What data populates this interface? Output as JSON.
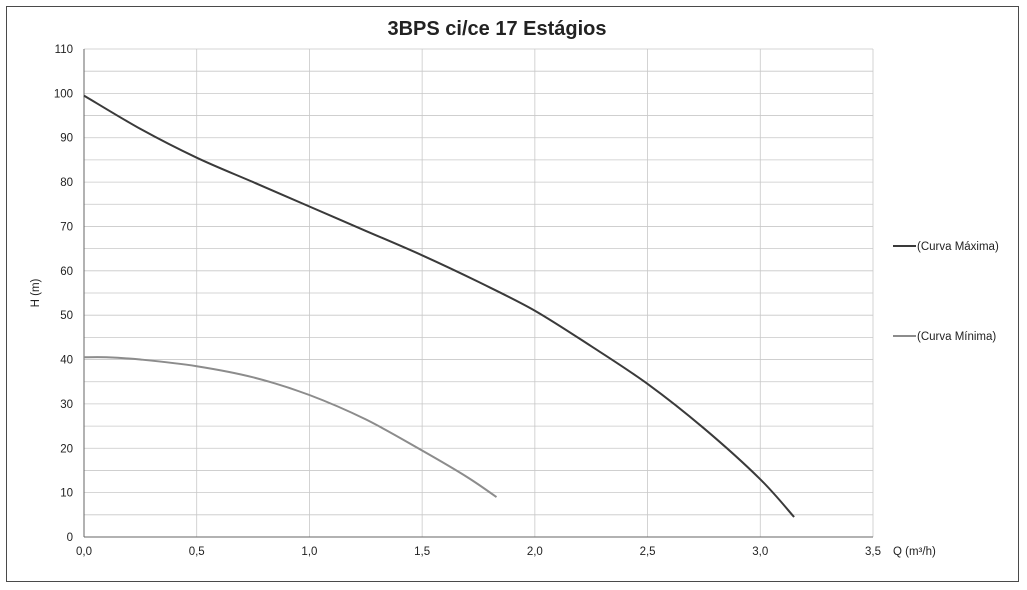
{
  "chart_data": {
    "type": "line",
    "title": "3BPS ci/ce 17 Estágios",
    "xlabel": "Q (m³/h)",
    "ylabel": "H (m)",
    "xlim": [
      0,
      3.5
    ],
    "ylim": [
      0,
      110
    ],
    "x_ticks": [
      "0,0",
      "0,5",
      "1,0",
      "1,5",
      "2,0",
      "2,5",
      "3,0",
      "3,5"
    ],
    "y_ticks": [
      "0",
      "10",
      "20",
      "30",
      "40",
      "50",
      "60",
      "70",
      "80",
      "90",
      "100",
      "110"
    ],
    "grid": true,
    "legend_position": "right",
    "series": [
      {
        "name": "(Curva Máxima)",
        "color": "#3a3a3a",
        "x": [
          0.0,
          0.25,
          0.5,
          0.75,
          1.0,
          1.25,
          1.5,
          1.75,
          2.0,
          2.25,
          2.5,
          2.75,
          3.0,
          3.15
        ],
        "y": [
          99.5,
          92.0,
          85.5,
          80.0,
          74.5,
          69.0,
          63.5,
          57.5,
          51.0,
          43.0,
          34.5,
          24.5,
          13.0,
          4.5
        ]
      },
      {
        "name": "(Curva Mínima)",
        "color": "#8c8c8c",
        "x": [
          0.0,
          0.1,
          0.25,
          0.5,
          0.75,
          1.0,
          1.25,
          1.5,
          1.7,
          1.83
        ],
        "y": [
          40.5,
          40.5,
          40.0,
          38.5,
          36.0,
          32.0,
          26.5,
          19.5,
          13.5,
          9.0
        ]
      }
    ]
  }
}
